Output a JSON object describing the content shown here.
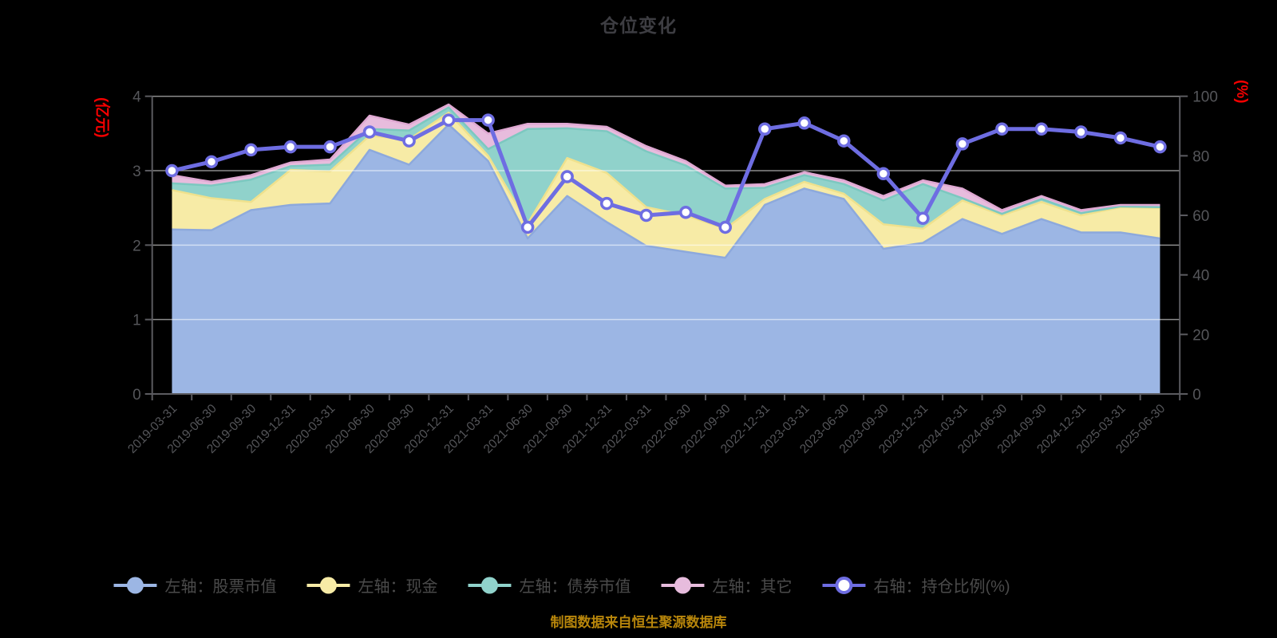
{
  "title": "仓位变化",
  "footer_note": "制图数据来自恒生聚源数据库",
  "colors": {
    "background": "#000000",
    "title_text": "#3d3d42",
    "axis_text": "#55565a",
    "axis_line": "#5b5b60",
    "grid_line": "rgba(255,255,255,0.55)",
    "axis_name_red": "#f40000",
    "legend_text": "#4b4b4b",
    "footer_text": "#b8860b",
    "stock_area": "#9cb6e4",
    "cash_area": "#f7eba6",
    "bond_area": "#90d2cb",
    "other_area": "#e7bcdd",
    "stock_edge": "#8da9dc",
    "cash_edge": "#efe18d",
    "bond_edge": "#7cc8c0",
    "other_edge": "#dfa8d2",
    "ratio_line": "#6e6de2",
    "marker_fill": "#ffffff"
  },
  "left_axis": {
    "name": "(亿元)",
    "ticks": [
      "0",
      "1",
      "2",
      "3",
      "4"
    ],
    "min": 0,
    "max": 4
  },
  "right_axis": {
    "name": "(%)",
    "ticks": [
      "0",
      "20",
      "40",
      "60",
      "80",
      "100"
    ],
    "min": 0,
    "max": 100
  },
  "legend": {
    "items": [
      {
        "id": "stock-market-value",
        "label": "左轴：股票市值",
        "color_key": "stock_area",
        "hollow": false
      },
      {
        "id": "cash",
        "label": "左轴：现金",
        "color_key": "cash_area",
        "hollow": false
      },
      {
        "id": "bond-market-value",
        "label": "左轴：债券市值",
        "color_key": "bond_area",
        "hollow": false
      },
      {
        "id": "other",
        "label": "左轴：其它",
        "color_key": "other_area",
        "hollow": false
      },
      {
        "id": "position-ratio",
        "label": "右轴：持仓比例(%)",
        "color_key": "ratio_line",
        "hollow": true
      }
    ]
  },
  "chart_data": {
    "type": "area",
    "stacked": true,
    "title": "仓位变化",
    "grid": true,
    "legend_position": "bottom",
    "left_ylim": [
      0,
      4
    ],
    "right_ylim": [
      0,
      100
    ],
    "categories": [
      "2019-03-31",
      "2019-06-30",
      "2019-09-30",
      "2019-12-31",
      "2020-03-31",
      "2020-06-30",
      "2020-09-30",
      "2020-12-31",
      "2021-03-31",
      "2021-06-30",
      "2021-09-30",
      "2021-12-31",
      "2022-03-31",
      "2022-06-30",
      "2022-09-30",
      "2022-12-31",
      "2023-03-31",
      "2023-06-30",
      "2023-09-30",
      "2023-12-31",
      "2024-03-31",
      "2024-06-30",
      "2024-09-30",
      "2024-12-31",
      "2025-03-31",
      "2025-06-30"
    ],
    "series": [
      {
        "name": "左轴：股票市值",
        "id": "stock-market-value",
        "type": "area",
        "stack": "total",
        "axis": "left",
        "color_key": "stock_area",
        "edge_key": "stock_edge",
        "values": [
          2.21,
          2.2,
          2.47,
          2.54,
          2.56,
          3.28,
          3.08,
          3.62,
          3.13,
          2.09,
          2.66,
          2.31,
          1.99,
          1.91,
          1.83,
          2.54,
          2.76,
          2.62,
          1.95,
          2.03,
          2.35,
          2.15,
          2.35,
          2.17,
          2.17,
          2.09
        ]
      },
      {
        "name": "左轴：现金",
        "id": "cash",
        "type": "area",
        "stack": "total",
        "axis": "left",
        "color_key": "cash_area",
        "edge_key": "cash_edge",
        "values": [
          0.53,
          0.43,
          0.11,
          0.47,
          0.43,
          0.19,
          0.34,
          0.16,
          0.07,
          0.2,
          0.51,
          0.66,
          0.52,
          0.49,
          0.39,
          0.08,
          0.09,
          0.07,
          0.33,
          0.19,
          0.25,
          0.25,
          0.23,
          0.23,
          0.34,
          0.41
        ]
      },
      {
        "name": "左轴：债券市值",
        "id": "bond-market-value",
        "type": "area",
        "stack": "total",
        "axis": "left",
        "color_key": "bond_area",
        "edge_key": "bond_edge",
        "values": [
          0.09,
          0.17,
          0.3,
          0.05,
          0.09,
          0.09,
          0.12,
          0.07,
          0.09,
          1.27,
          0.4,
          0.56,
          0.75,
          0.67,
          0.54,
          0.15,
          0.09,
          0.13,
          0.32,
          0.6,
          0.03,
          0.02,
          0.04,
          0.03,
          0.01,
          0.01
        ]
      },
      {
        "name": "左轴：其它",
        "id": "other",
        "type": "area",
        "stack": "total",
        "axis": "left",
        "color_key": "other_area",
        "edge_key": "other_edge",
        "values": [
          0.11,
          0.05,
          0.06,
          0.05,
          0.07,
          0.18,
          0.08,
          0.04,
          0.21,
          0.07,
          0.06,
          0.06,
          0.07,
          0.06,
          0.04,
          0.05,
          0.04,
          0.05,
          0.06,
          0.05,
          0.13,
          0.05,
          0.04,
          0.04,
          0.02,
          0.03
        ]
      },
      {
        "name": "右轴：持仓比例(%)",
        "id": "position-ratio",
        "type": "line",
        "axis": "right",
        "color_key": "ratio_line",
        "symbol": "circle",
        "values": [
          75,
          78,
          82,
          83,
          83,
          88,
          85,
          92,
          92,
          56,
          73,
          64,
          60,
          61,
          56,
          89,
          91,
          85,
          74,
          59,
          84,
          89,
          89,
          88,
          86,
          83
        ]
      }
    ]
  }
}
